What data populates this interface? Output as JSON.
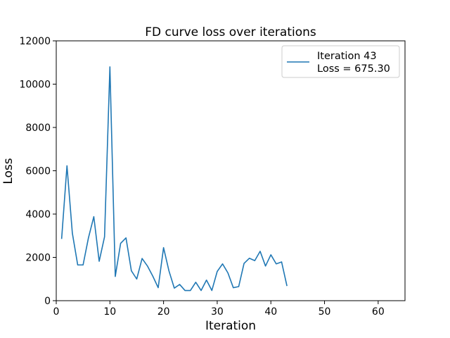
{
  "chart_data": {
    "type": "line",
    "title": "FD curve loss over iterations",
    "xlabel": "Iteration",
    "ylabel": "Loss",
    "xlim": [
      0,
      65
    ],
    "ylim": [
      0,
      12000
    ],
    "xticks": [
      0,
      10,
      20,
      30,
      40,
      50,
      60
    ],
    "yticks": [
      0,
      2000,
      4000,
      6000,
      8000,
      10000,
      12000
    ],
    "grid": false,
    "legend_position": "top-right",
    "legend": {
      "line1": "Iteration 43",
      "line2": "Loss = 675.30"
    },
    "series": [
      {
        "color": "#1f77b4",
        "x": [
          1,
          2,
          3,
          4,
          5,
          6,
          7,
          8,
          9,
          10,
          11,
          12,
          13,
          14,
          15,
          16,
          17,
          18,
          19,
          20,
          21,
          22,
          23,
          24,
          25,
          26,
          27,
          28,
          29,
          30,
          31,
          32,
          33,
          34,
          35,
          36,
          37,
          38,
          39,
          40,
          41,
          42,
          43
        ],
        "y": [
          2850,
          6230,
          3120,
          1650,
          1650,
          2900,
          3880,
          1820,
          2950,
          10800,
          1120,
          2650,
          2900,
          1380,
          1000,
          1950,
          1600,
          1130,
          600,
          2450,
          1380,
          580,
          750,
          470,
          470,
          850,
          470,
          950,
          470,
          1350,
          1700,
          1280,
          600,
          650,
          1720,
          1960,
          1850,
          2280,
          1600,
          2120,
          1700,
          1790,
          675.3
        ]
      }
    ]
  }
}
